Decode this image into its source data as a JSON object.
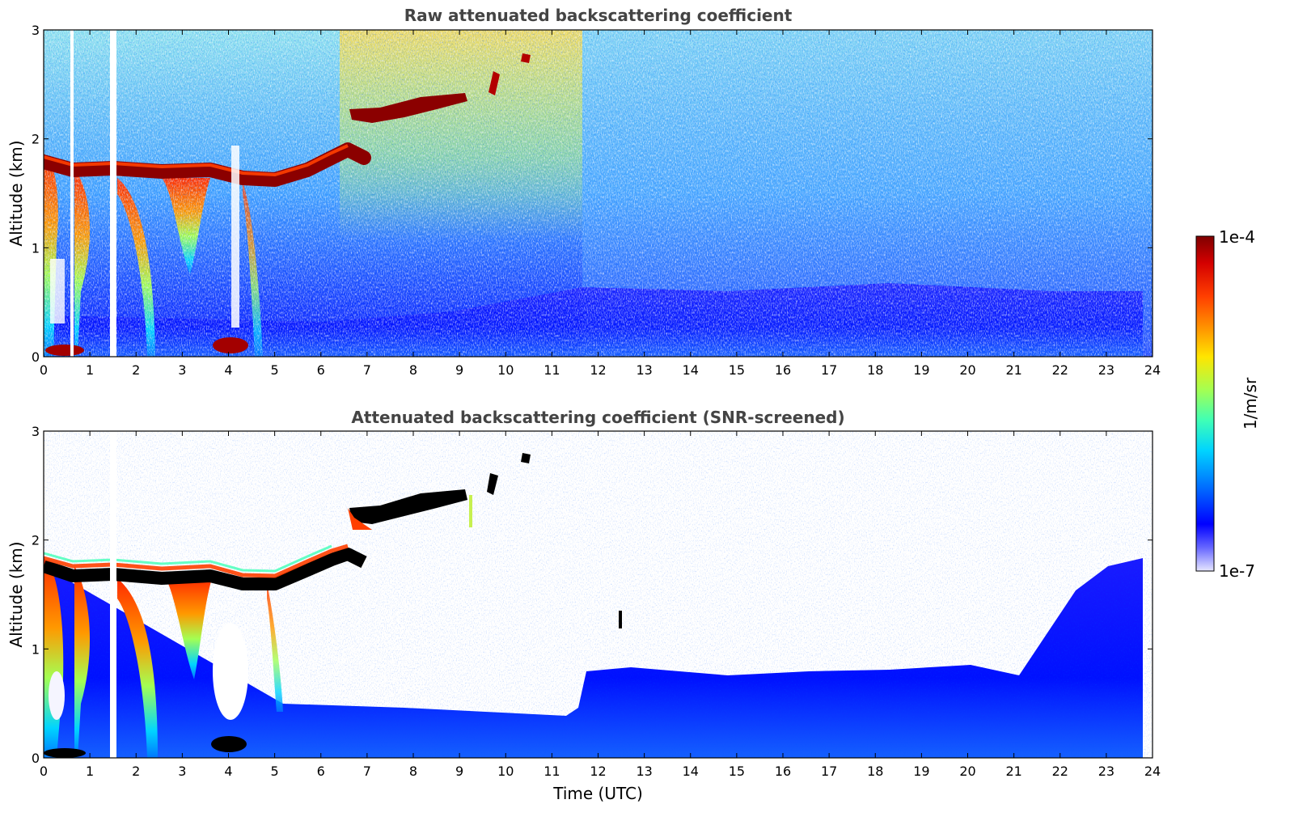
{
  "chart_data": [
    {
      "type": "heatmap",
      "title": "Raw attenuated backscattering coefficient",
      "xlabel": "",
      "ylabel": "Altitude (km)",
      "xlim": [
        0,
        24
      ],
      "ylim": [
        0,
        3
      ],
      "x_ticks": [
        "0",
        "1",
        "2",
        "3",
        "4",
        "5",
        "6",
        "7",
        "8",
        "9",
        "10",
        "11",
        "12",
        "13",
        "14",
        "15",
        "16",
        "17",
        "18",
        "19",
        "20",
        "21",
        "22",
        "23",
        "24"
      ],
      "y_ticks": [
        "0",
        "1",
        "2",
        "3"
      ],
      "features": {
        "boundary_layer_top": {
          "time": [
            0,
            1,
            2,
            3,
            4,
            5,
            6,
            6.5,
            7
          ],
          "altitude": [
            1.7,
            1.65,
            1.62,
            1.65,
            1.6,
            1.62,
            1.72,
            1.8,
            1.78
          ]
        },
        "elevated_layer": {
          "time": [
            6.7,
            7.5,
            8.5,
            9.0
          ],
          "altitude": [
            2.25,
            2.3,
            2.38,
            2.42
          ]
        },
        "gaps": [
          [
            0.6,
            0.65
          ],
          [
            1.4,
            1.55
          ],
          [
            4.05,
            4.3
          ]
        ],
        "noise_change_time": 11.6
      }
    },
    {
      "type": "heatmap",
      "title": "Attenuated backscattering coefficient (SNR-screened)",
      "xlabel": "Time (UTC)",
      "ylabel": "Altitude (km)",
      "xlim": [
        0,
        24
      ],
      "ylim": [
        0,
        3
      ],
      "x_ticks": [
        "0",
        "1",
        "2",
        "3",
        "4",
        "5",
        "6",
        "7",
        "8",
        "9",
        "10",
        "11",
        "12",
        "13",
        "14",
        "15",
        "16",
        "17",
        "18",
        "19",
        "20",
        "21",
        "22",
        "23",
        "24"
      ],
      "y_ticks": [
        "0",
        "1",
        "2",
        "3"
      ],
      "features": {
        "boundary_layer_top": {
          "time": [
            0,
            1,
            2,
            3,
            4,
            5,
            6,
            6.5,
            7
          ],
          "altitude": [
            1.7,
            1.65,
            1.62,
            1.65,
            1.6,
            1.62,
            1.72,
            1.8,
            1.78
          ]
        },
        "elevated_layer": {
          "time": [
            6.7,
            7.5,
            8.5,
            9.0
          ],
          "altitude": [
            2.25,
            2.3,
            2.38,
            2.42
          ]
        },
        "low_layer_top": {
          "time": [
            5,
            8,
            11.6,
            12,
            16,
            20,
            21,
            22,
            23.8
          ],
          "altitude": [
            0.45,
            0.45,
            0.4,
            0.8,
            0.75,
            0.8,
            0.75,
            1.4,
            1.7
          ]
        }
      }
    }
  ],
  "colorbar": {
    "label": "1/m/sr",
    "max_label": "1e-4",
    "min_label": "1e-7",
    "colors": [
      "#7f0000",
      "#d40000",
      "#ff3f00",
      "#ff9900",
      "#ffe500",
      "#a3ff53",
      "#3fffb6",
      "#00d4ff",
      "#0077ff",
      "#0000ff",
      "#6666ff",
      "#e6e6ff"
    ]
  }
}
